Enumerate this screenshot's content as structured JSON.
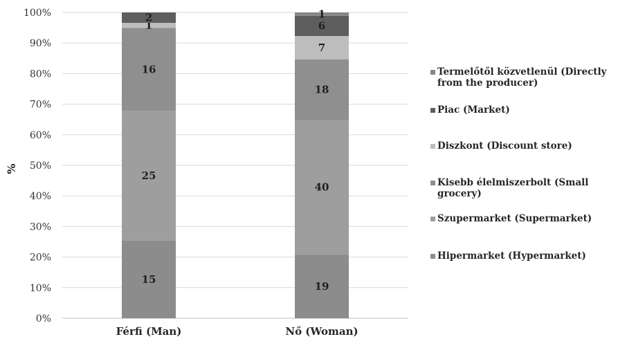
{
  "chart_data": {
    "type": "bar",
    "stacked": true,
    "categories": [
      "Férfi (Man)",
      "Nő (Woman)"
    ],
    "ylabel": "%",
    "ylim": [
      0,
      100
    ],
    "y_ticks": [
      "0%",
      "10%",
      "20%",
      "30%",
      "40%",
      "50%",
      "60%",
      "70%",
      "80%",
      "90%",
      "100%"
    ],
    "grid": true,
    "legend_position": "right",
    "series": [
      {
        "name": "Hipermarket (Hypermarket)",
        "values": [
          15,
          19
        ],
        "color": "#8c8c8c",
        "labels": [
          "15",
          "19"
        ]
      },
      {
        "name": "Szupermarket (Supermarket)",
        "values": [
          25,
          40
        ],
        "color": "#9e9e9e",
        "labels": [
          "25",
          "40"
        ]
      },
      {
        "name": "Kisebb élelmiszerbolt (Small grocery)",
        "values": [
          16,
          18
        ],
        "color": "#8f8f8f",
        "labels": [
          "16",
          "18"
        ]
      },
      {
        "name": "Diszkont (Discount store)",
        "values": [
          1,
          7
        ],
        "color": "#bdbdbd",
        "labels": [
          "1",
          "7"
        ]
      },
      {
        "name": "Piac (Market)",
        "values": [
          2,
          6
        ],
        "color": "#5e5e5e",
        "labels": [
          "2",
          "6"
        ]
      },
      {
        "name": "Termelőtől közvetlenül (Directly from the producer)",
        "values": [
          0,
          1
        ],
        "color": "#878787",
        "labels": [
          "",
          "1"
        ]
      }
    ]
  }
}
